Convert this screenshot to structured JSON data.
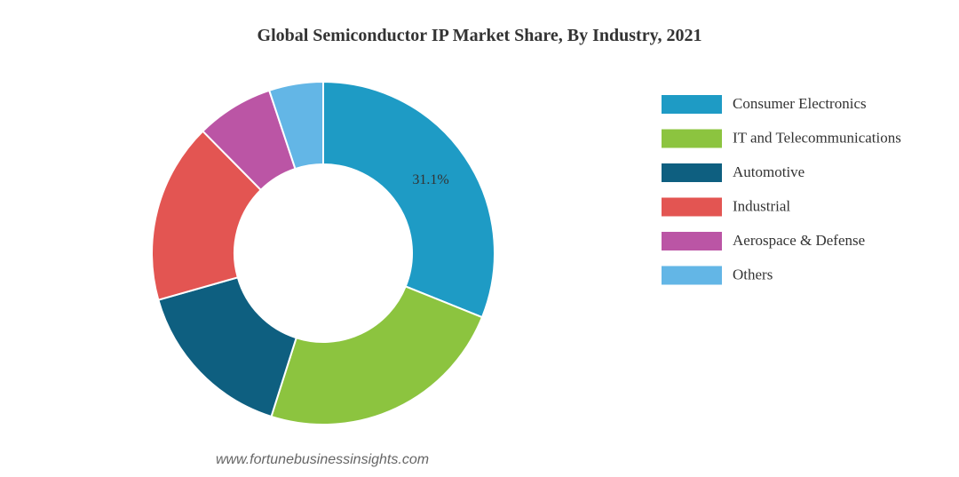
{
  "chart_data": {
    "type": "donut",
    "title": "Global Semiconductor IP Market Share, By Industry, 2021",
    "categories": [
      "Consumer Electronics",
      "IT and Telecommunications",
      "Automotive",
      "Industrial",
      "Aerospace & Defense",
      "Others"
    ],
    "values": [
      31.1,
      23.8,
      15.7,
      17.0,
      7.3,
      5.1
    ],
    "value_labels": [
      "31.1%",
      null,
      null,
      null,
      null,
      null
    ],
    "colors": [
      "#1e9bc5",
      "#8cc43f",
      "#0e5f80",
      "#e35552",
      "#bb55a5",
      "#63b6e6"
    ],
    "legend": "right",
    "source": "www.fortunebusinessinsights.com"
  }
}
